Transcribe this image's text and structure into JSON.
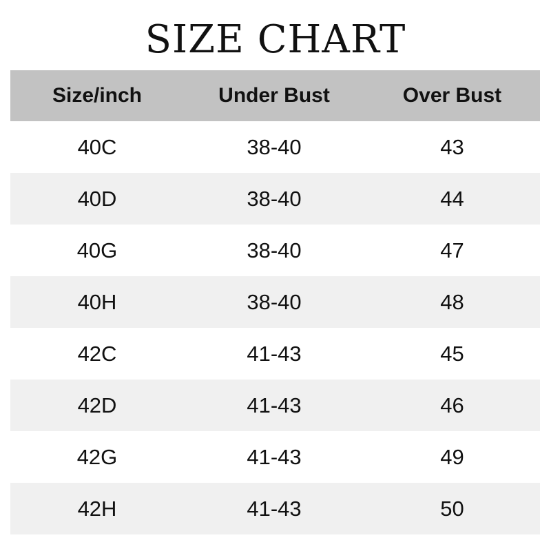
{
  "title": "SIZE CHART",
  "table": {
    "headers": [
      "Size/inch",
      "Under Bust",
      "Over Bust"
    ],
    "rows": [
      [
        "40C",
        "38-40",
        "43"
      ],
      [
        "40D",
        "38-40",
        "44"
      ],
      [
        "40G",
        "38-40",
        "47"
      ],
      [
        "40H",
        "38-40",
        "48"
      ],
      [
        "42C",
        "41-43",
        "45"
      ],
      [
        "42D",
        "41-43",
        "46"
      ],
      [
        "42G",
        "41-43",
        "49"
      ],
      [
        "42H",
        "41-43",
        "50"
      ]
    ]
  },
  "colors": {
    "header_bg": "#c2c2c2",
    "alt_row_bg": "#f0f0f0"
  }
}
